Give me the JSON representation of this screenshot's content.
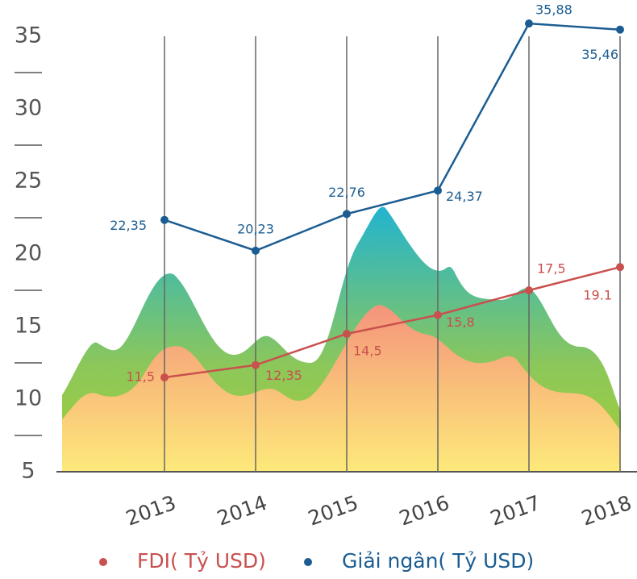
{
  "chart_data": {
    "type": "line",
    "categories": [
      "2013",
      "2014",
      "2015",
      "2016",
      "2017",
      "2018"
    ],
    "series": [
      {
        "name": "FDI( Tỷ USD)",
        "color": "#c9504e",
        "values": [
          11.5,
          12.35,
          14.5,
          15.8,
          17.5,
          19.1
        ],
        "value_labels": [
          "11,5",
          "12,35",
          "14,5",
          "15,8",
          "17,5",
          "19.1"
        ]
      },
      {
        "name": "Giải ngân( Tỷ USD)",
        "color": "#1b5d92",
        "values": [
          22.35,
          20.23,
          22.76,
          24.37,
          35.88,
          35.46
        ],
        "value_labels": [
          "22,35",
          "20,23",
          "22,76",
          "24,37",
          "35,88",
          "35,46"
        ]
      }
    ],
    "ylim": [
      5,
      35
    ],
    "yticks": [
      5,
      10,
      15,
      20,
      25,
      30,
      35
    ],
    "minor_yticks": [
      7.5,
      12.5,
      17.5,
      22.5,
      27.5,
      32.5
    ],
    "grid": true,
    "legend": "bottom"
  }
}
